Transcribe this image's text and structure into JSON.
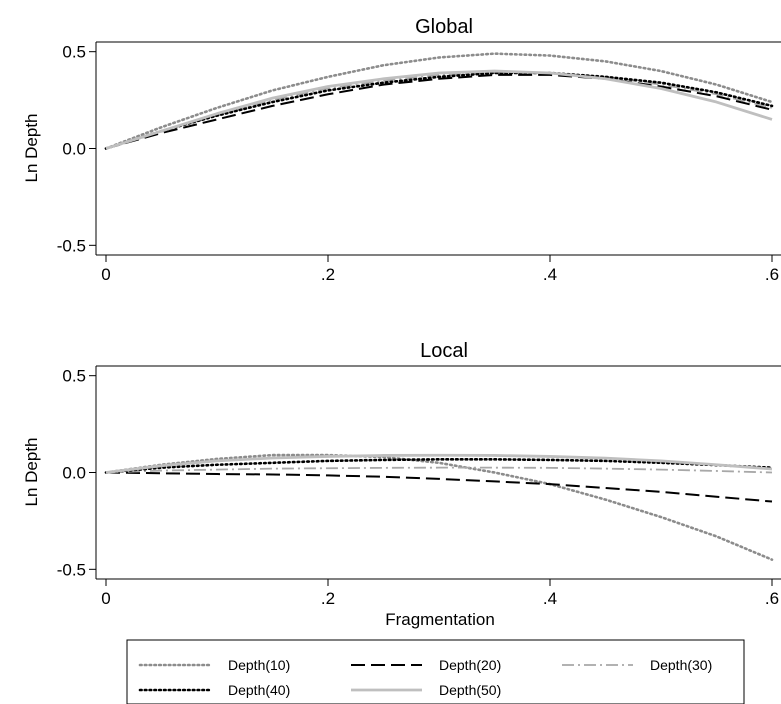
{
  "chart_data": [
    {
      "type": "line",
      "title": "Global",
      "xlabel": "",
      "ylabel": "Ln Depth",
      "xlim": [
        0,
        0.6
      ],
      "ylim": [
        -0.55,
        0.55
      ],
      "x_ticks": [
        0,
        0.2,
        0.4,
        0.6
      ],
      "x_tick_labels": [
        "0",
        ".2",
        ".4",
        ".6"
      ],
      "y_ticks": [
        -0.5,
        0.0,
        0.5
      ],
      "y_tick_labels": [
        "-0.5",
        "0.0",
        "0.5"
      ],
      "grid": false,
      "x": [
        0,
        0.05,
        0.1,
        0.15,
        0.2,
        0.25,
        0.3,
        0.35,
        0.4,
        0.45,
        0.5,
        0.55,
        0.6
      ],
      "series": [
        {
          "name": "Depth(10)",
          "values": [
            0.0,
            0.11,
            0.21,
            0.3,
            0.37,
            0.43,
            0.47,
            0.49,
            0.48,
            0.45,
            0.4,
            0.33,
            0.24
          ]
        },
        {
          "name": "Depth(20)",
          "values": [
            0.0,
            0.08,
            0.15,
            0.22,
            0.28,
            0.33,
            0.36,
            0.38,
            0.38,
            0.36,
            0.32,
            0.27,
            0.2
          ]
        },
        {
          "name": "Depth(30)",
          "values": [
            0.0,
            0.09,
            0.17,
            0.25,
            0.31,
            0.35,
            0.38,
            0.39,
            0.39,
            0.37,
            0.33,
            0.28,
            0.21
          ]
        },
        {
          "name": "Depth(40)",
          "values": [
            0.0,
            0.09,
            0.17,
            0.24,
            0.3,
            0.34,
            0.37,
            0.39,
            0.39,
            0.37,
            0.34,
            0.29,
            0.22
          ]
        },
        {
          "name": "Depth(50)",
          "values": [
            0.0,
            0.09,
            0.18,
            0.26,
            0.32,
            0.36,
            0.39,
            0.4,
            0.39,
            0.36,
            0.31,
            0.24,
            0.15
          ]
        }
      ]
    },
    {
      "type": "line",
      "title": "Local",
      "xlabel": "Fragmentation",
      "ylabel": "Ln Depth",
      "xlim": [
        0,
        0.6
      ],
      "ylim": [
        -0.55,
        0.55
      ],
      "x_ticks": [
        0,
        0.2,
        0.4,
        0.6
      ],
      "x_tick_labels": [
        "0",
        ".2",
        ".4",
        ".6"
      ],
      "y_ticks": [
        -0.5,
        0.0,
        0.5
      ],
      "y_tick_labels": [
        "-0.5",
        "0.0",
        "0.5"
      ],
      "grid": false,
      "x": [
        0,
        0.05,
        0.1,
        0.15,
        0.2,
        0.25,
        0.3,
        0.35,
        0.4,
        0.45,
        0.5,
        0.55,
        0.6
      ],
      "series": [
        {
          "name": "Depth(10)",
          "values": [
            0.0,
            0.04,
            0.07,
            0.09,
            0.09,
            0.08,
            0.05,
            0.0,
            -0.06,
            -0.14,
            -0.23,
            -0.33,
            -0.45
          ]
        },
        {
          "name": "Depth(20)",
          "values": [
            0.0,
            -0.004,
            -0.008,
            -0.01,
            -0.015,
            -0.022,
            -0.033,
            -0.046,
            -0.06,
            -0.08,
            -0.1,
            -0.125,
            -0.15
          ]
        },
        {
          "name": "Depth(30)",
          "values": [
            0.0,
            0.01,
            0.015,
            0.02,
            0.022,
            0.024,
            0.025,
            0.025,
            0.024,
            0.02,
            0.015,
            0.008,
            0.0
          ]
        },
        {
          "name": "Depth(40)",
          "values": [
            0.0,
            0.025,
            0.04,
            0.05,
            0.06,
            0.065,
            0.068,
            0.068,
            0.065,
            0.06,
            0.05,
            0.038,
            0.025
          ]
        },
        {
          "name": "Depth(50)",
          "values": [
            0.0,
            0.035,
            0.06,
            0.075,
            0.083,
            0.088,
            0.089,
            0.088,
            0.083,
            0.074,
            0.06,
            0.04,
            0.018
          ]
        }
      ]
    }
  ],
  "legend": {
    "placement": "bottom",
    "items": [
      {
        "label": "Depth(10)",
        "color": "#8c8c8c",
        "style": "dotted"
      },
      {
        "label": "Depth(20)",
        "color": "#000000",
        "style": "long-dash"
      },
      {
        "label": "Depth(30)",
        "color": "#a8a8a8",
        "style": "dash-dot"
      },
      {
        "label": "Depth(40)",
        "color": "#000000",
        "style": "dotted"
      },
      {
        "label": "Depth(50)",
        "color": "#bfbfbf",
        "style": "solid"
      }
    ]
  }
}
